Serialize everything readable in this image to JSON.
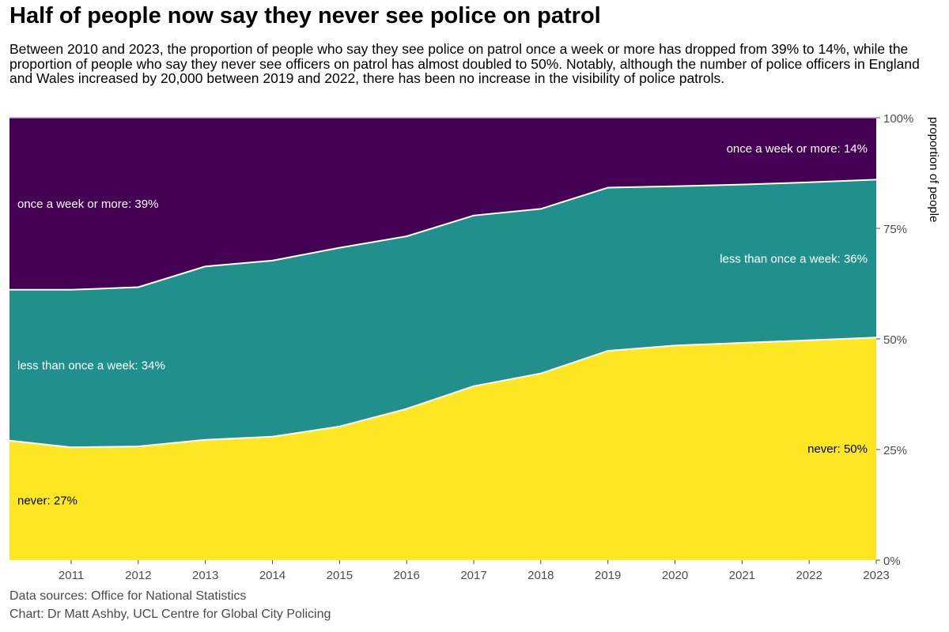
{
  "title": "Half of people now say they never see police on patrol",
  "subtitle": "Between 2010 and 2023, the proportion of people who say they see police on patrol once a week or more has dropped from 39% to 14%, while the proportion of people who say they never see officers on patrol has almost doubled to 50%. Notably, although the number of police officers in England and Wales increased by 20,000 between 2019 and 2022, there has been no increase in the visibility of police patrols.",
  "captions": {
    "sources": "Data sources: Office for National Statistics",
    "chart": "Chart: Dr Matt Ashby, UCL Centre for Global City Policing"
  },
  "chart_data": {
    "type": "area",
    "stacked": true,
    "x_tick_labels": [
      "2011",
      "2012",
      "2013",
      "2014",
      "2015",
      "2016",
      "2017",
      "2018",
      "2019",
      "2020",
      "2021",
      "2022",
      "2023"
    ],
    "y_tick_labels": [
      "0%",
      "25%",
      "50%",
      "75%",
      "100%"
    ],
    "ylabel": "proportion of people",
    "ylim": [
      0,
      1
    ],
    "y_axis_position": "right",
    "x": [
      2010.25,
      2011.17,
      2012.17,
      2013.17,
      2014.17,
      2015.17,
      2016.17,
      2017.17,
      2018.17,
      2019.17,
      2020.17,
      2021.17,
      2022.17,
      2023.17
    ],
    "series": [
      {
        "name": "never",
        "color": "#fde725",
        "text_color": "#000000",
        "values": [
          0.27,
          0.255,
          0.257,
          0.272,
          0.279,
          0.302,
          0.342,
          0.393,
          0.422,
          0.473,
          0.485,
          0.491,
          0.497,
          0.503
        ],
        "label": "never: 27%",
        "end_label": "never: 50%"
      },
      {
        "name": "less than once a week",
        "color": "#21908d",
        "text_color": "#ffffff",
        "values": [
          0.341,
          0.356,
          0.36,
          0.392,
          0.398,
          0.404,
          0.39,
          0.386,
          0.372,
          0.369,
          0.36,
          0.358,
          0.357,
          0.357
        ],
        "label": "less than once a week: 34%",
        "end_label": "less than once a week: 36%"
      },
      {
        "name": "once a week or more",
        "color": "#440154",
        "text_color": "#ffffff",
        "values": [
          0.389,
          0.389,
          0.383,
          0.336,
          0.323,
          0.294,
          0.268,
          0.221,
          0.206,
          0.158,
          0.155,
          0.151,
          0.146,
          0.14
        ],
        "label": "once a week or more: 39%",
        "end_label": "once a week or more: 14%"
      }
    ]
  }
}
